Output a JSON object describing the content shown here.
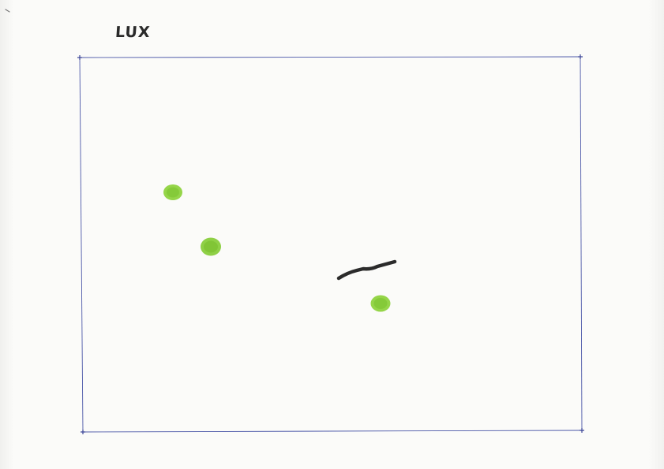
{
  "sheet": {
    "label": "LUX"
  },
  "colors": {
    "frame": "#4b57a8",
    "dot": "#8cd13a",
    "dot_center": "#7cc32f",
    "stroke": "#2b2b2b"
  }
}
